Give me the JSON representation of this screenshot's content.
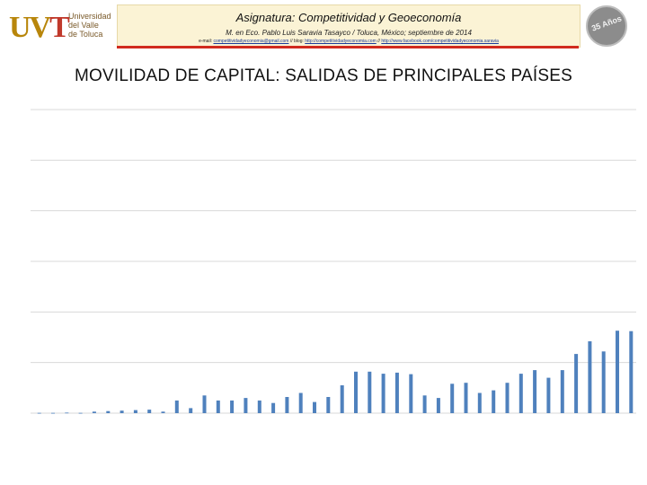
{
  "header": {
    "logo_letters": "UVT",
    "logo_text": [
      "Universidad",
      "del Valle",
      "de Toluca"
    ],
    "title": "Asignatura: Competitividad y Geoeconomía",
    "subtitle": "M. en Eco. Pablo Luis Saravia Tasayco / Toluca, México; septiembre de 2014",
    "links_prefix": "e-mail:",
    "link_email": "competitividadyeconomia@gmail.com",
    "links_sep1": "//  blog:",
    "link_blog": "http://competitividadyeconomia.com",
    "links_sep2": "//",
    "link_fb": "http://www.facebook.com/competitividadyeconomia.saravia",
    "seal_text": "35 Años"
  },
  "slide_title": "MOVILIDAD  DE CAPITAL: SALIDAS DE PRINCIPALES PAÍSES",
  "colors": {
    "bar": "#4f81bd",
    "grid": "#d9d9d9",
    "header_bg": "#fbf3d5",
    "header_rule": "#d12a1e"
  },
  "chart_data": {
    "type": "bar",
    "grid": true,
    "gridlines": 7,
    "ylim": [
      0,
      600
    ],
    "values": [
      0.5,
      0.5,
      1,
      0.5,
      3,
      4,
      5,
      6,
      7,
      3,
      25,
      10,
      35,
      25,
      25,
      30,
      25,
      20,
      32,
      40,
      22,
      32,
      55,
      82,
      82,
      78,
      80,
      77,
      35,
      30,
      58,
      60,
      40,
      45,
      60,
      78,
      85,
      70,
      85,
      117,
      142,
      122,
      163,
      162
    ]
  }
}
